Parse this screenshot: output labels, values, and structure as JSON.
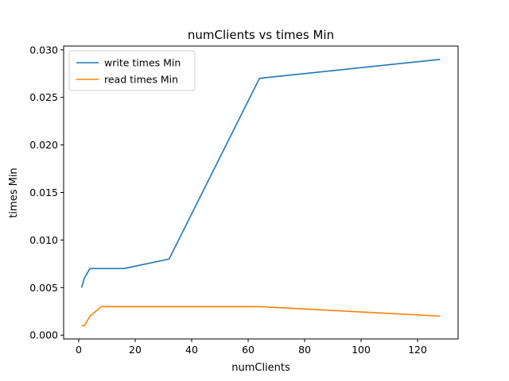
{
  "chart_data": {
    "type": "line",
    "title": "numClients vs times Min",
    "xlabel": "numClients",
    "ylabel": "times Min",
    "xlim": [
      -5.35,
      134.35
    ],
    "ylim": [
      -0.0004,
      0.0304
    ],
    "xticks": [
      0,
      20,
      40,
      60,
      80,
      100,
      120
    ],
    "xtick_labels": [
      "0",
      "20",
      "40",
      "60",
      "80",
      "100",
      "120"
    ],
    "yticks": [
      0.0,
      0.005,
      0.01,
      0.015,
      0.02,
      0.025,
      0.03
    ],
    "ytick_labels": [
      "0.000",
      "0.005",
      "0.010",
      "0.015",
      "0.020",
      "0.025",
      "0.030"
    ],
    "grid": false,
    "legend_position": "top-left",
    "x": [
      1,
      2,
      4,
      8,
      16,
      32,
      64,
      128
    ],
    "series": [
      {
        "name": "write times Min",
        "color": "#1f77b4",
        "values": [
          0.005,
          0.006,
          0.007,
          0.007,
          0.007,
          0.008,
          0.027,
          0.029
        ]
      },
      {
        "name": "read times Min",
        "color": "#ff7f0e",
        "values": [
          0.001,
          0.001,
          0.002,
          0.003,
          0.003,
          0.003,
          0.003,
          0.002
        ]
      }
    ]
  }
}
